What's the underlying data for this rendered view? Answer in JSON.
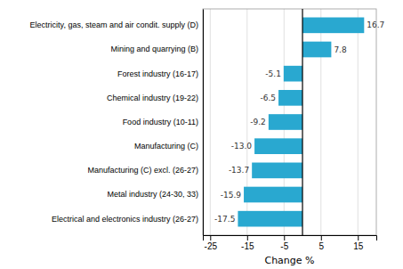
{
  "chart_data": {
    "type": "bar",
    "orientation": "horizontal",
    "categories": [
      "Electrical and electronics industry (26-27)",
      "Metal industry (24-30, 33)",
      "Manufacturing (C) excl. (26-27)",
      "Manufacturing (C)",
      "Food industry (10-11)",
      "Chemical industry (19-22)",
      "Forest industry (16-17)",
      "Mining and quarrying (B)",
      "Electricity, gas, steam and air condit. supply (D)"
    ],
    "values": [
      -17.5,
      -15.9,
      -13.7,
      -13.0,
      -9.2,
      -6.5,
      -5.1,
      7.8,
      16.7
    ],
    "value_labels": [
      "-17.5",
      "-15.9",
      "-13.7",
      "-13.0",
      "-9.2",
      "-6.5",
      "-5.1",
      "7.8",
      "16.7"
    ],
    "data_labels": true,
    "color": "#29a8d0",
    "xlabel": "Change %",
    "xlim": [
      -27,
      20
    ],
    "xticks": [
      -25,
      -15,
      -5,
      5,
      15
    ],
    "grid": true
  }
}
